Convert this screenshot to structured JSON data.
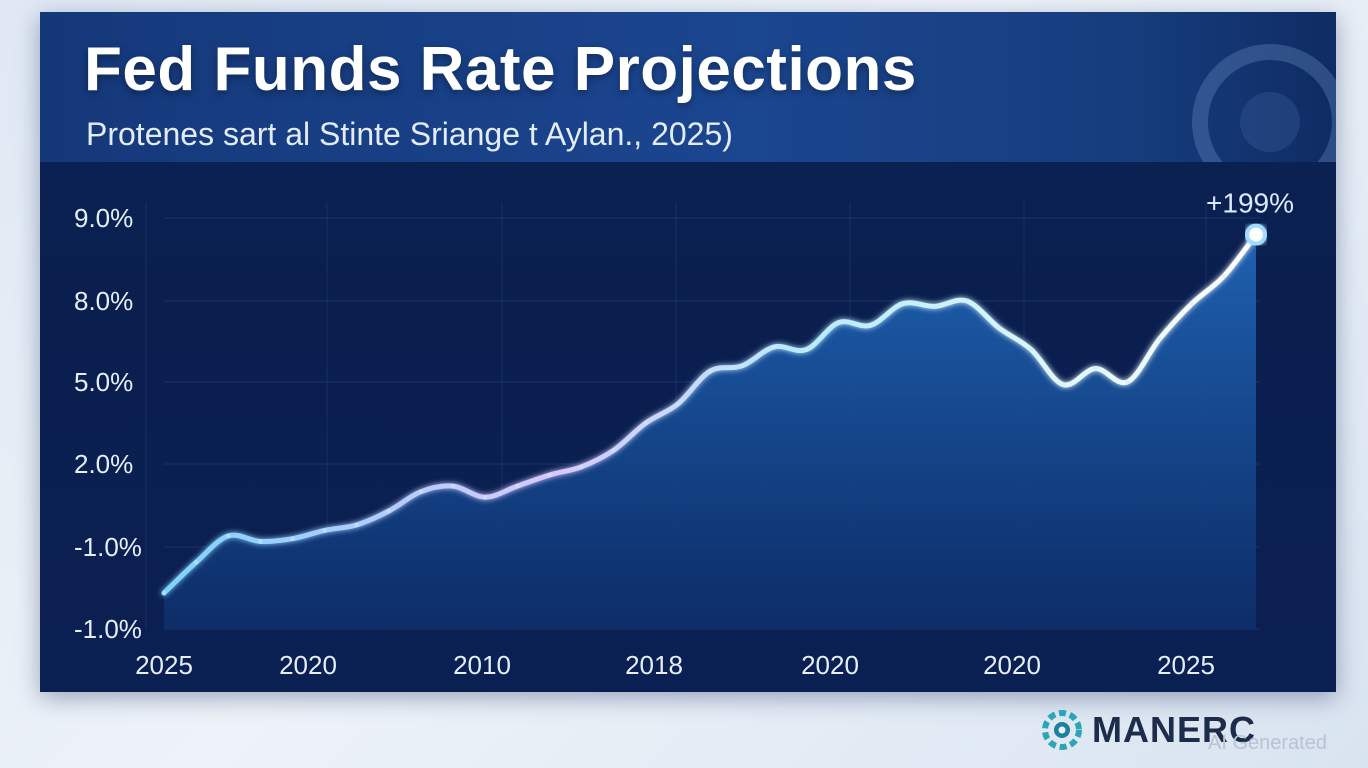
{
  "title": "Fed Funds Rate Projections",
  "subtitle": "Protenes sart al Stinte Sriange t Aylan., 2025)",
  "brand": {
    "name": "MANERC",
    "icon": "gear-logo-icon"
  },
  "watermark": "AI Generated",
  "colors": {
    "line": "#a9dcff",
    "area_top": "#1f64b5",
    "area_bottom": "#0d2e6a",
    "accent": "#7fd3ff"
  },
  "chart_data": {
    "type": "area",
    "title": "Fed Funds Rate Projections",
    "subtitle": "Protenes sart al Stinte Sriange t Aylan., 2025)",
    "y_tick_labels": [
      "9.0%",
      "8.0%",
      "5.0%",
      "2.0%",
      "-1.0%",
      "-1.0%"
    ],
    "x_tick_labels": [
      "2025",
      "2020",
      "2010",
      "2018",
      "2020",
      "2020",
      "2025"
    ],
    "annotation": "+199%",
    "grid": true,
    "series": [
      {
        "values": [
          -1.6,
          -1.2,
          -0.6,
          -0.8,
          -0.7,
          -0.4,
          -0.2,
          0.3,
          1.0,
          1.2,
          0.8,
          1.2,
          1.6,
          1.9,
          2.5,
          3.5,
          4.2,
          5.4,
          5.6,
          6.3,
          6.2,
          7.2,
          7.1,
          7.9,
          7.8,
          8.0,
          7.0,
          6.2,
          4.9,
          5.5,
          5.0,
          6.6,
          7.9,
          8.3,
          8.8
        ]
      }
    ]
  }
}
